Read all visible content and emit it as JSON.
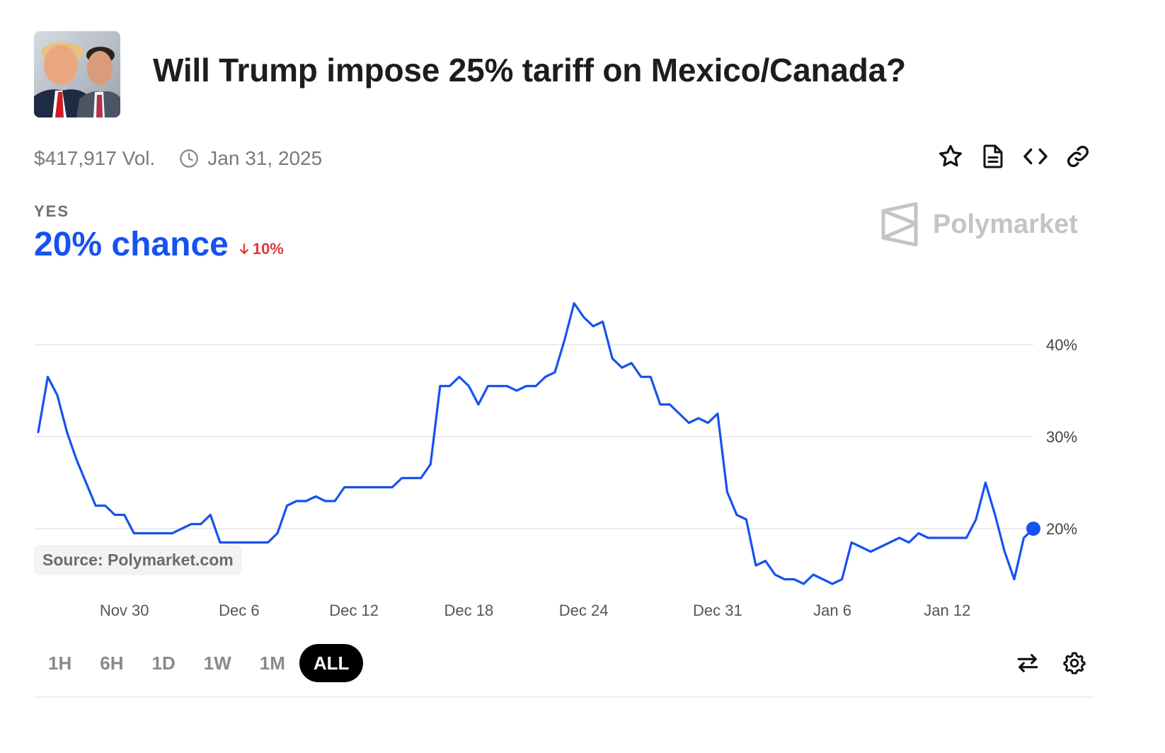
{
  "market": {
    "title": "Will Trump impose 25% tariff on Mexico/Canada?",
    "volume": "$417,917 Vol.",
    "end_date": "Jan 31, 2025",
    "outcome_label": "YES",
    "chance": "20% chance",
    "change": "10%",
    "change_direction": "down",
    "thumbnail_alt": "photo-of-two-men",
    "brand": "Polymarket",
    "source": "Source: Polymarket.com"
  },
  "actions": [
    {
      "icon": "star-icon"
    },
    {
      "icon": "document-icon"
    },
    {
      "icon": "code-icon"
    },
    {
      "icon": "link-icon"
    }
  ],
  "time_ranges": [
    "1H",
    "6H",
    "1D",
    "1W",
    "1M",
    "ALL"
  ],
  "active_range": "ALL",
  "controls": [
    {
      "icon": "swap-arrows-icon"
    },
    {
      "icon": "settings-gear-icon"
    }
  ],
  "colors": {
    "accent": "#1652f0",
    "negative": "#e23939",
    "title": "#1d1d1f",
    "muted": "#7a7a7a",
    "grid": "#ececec"
  },
  "chart_data": {
    "type": "line",
    "title": "",
    "xlabel": "",
    "ylabel": "",
    "x_ticks": [
      {
        "label": "Nov 30",
        "x": "2024-11-30"
      },
      {
        "label": "Dec 6",
        "x": "2024-12-06"
      },
      {
        "label": "Dec 12",
        "x": "2024-12-12"
      },
      {
        "label": "Dec 18",
        "x": "2024-12-18"
      },
      {
        "label": "Dec 24",
        "x": "2024-12-24"
      },
      {
        "label": "Dec 31",
        "x": "2024-12-31"
      },
      {
        "label": "Jan 6",
        "x": "2025-01-06"
      },
      {
        "label": "Jan 12",
        "x": "2025-01-12"
      }
    ],
    "y_ticks": [
      {
        "label": "20%",
        "value": 20
      },
      {
        "label": "30%",
        "value": 30
      },
      {
        "label": "40%",
        "value": 40
      }
    ],
    "ylim": [
      12,
      47
    ],
    "grid": true,
    "series": [
      {
        "points": [
          [
            "2024-11-25 12:00",
            30.5
          ],
          [
            "2024-11-26 00:00",
            36.5
          ],
          [
            "2024-11-26 12:00",
            34.5
          ],
          [
            "2024-11-27 00:00",
            30.5
          ],
          [
            "2024-11-27 12:00",
            27.5
          ],
          [
            "2024-11-28 00:00",
            25.0
          ],
          [
            "2024-11-28 12:00",
            22.5
          ],
          [
            "2024-11-29 00:00",
            22.5
          ],
          [
            "2024-11-29 12:00",
            21.5
          ],
          [
            "2024-11-30 00:00",
            21.5
          ],
          [
            "2024-11-30 12:00",
            19.5
          ],
          [
            "2024-12-01 00:00",
            19.5
          ],
          [
            "2024-12-01 12:00",
            19.5
          ],
          [
            "2024-12-02 00:00",
            19.5
          ],
          [
            "2024-12-02 12:00",
            19.5
          ],
          [
            "2024-12-03 00:00",
            20.0
          ],
          [
            "2024-12-03 12:00",
            20.5
          ],
          [
            "2024-12-04 00:00",
            20.5
          ],
          [
            "2024-12-04 12:00",
            21.5
          ],
          [
            "2024-12-05 00:00",
            18.5
          ],
          [
            "2024-12-05 12:00",
            18.5
          ],
          [
            "2024-12-06 00:00",
            18.5
          ],
          [
            "2024-12-06 12:00",
            18.5
          ],
          [
            "2024-12-07 00:00",
            18.5
          ],
          [
            "2024-12-07 12:00",
            18.5
          ],
          [
            "2024-12-08 00:00",
            19.5
          ],
          [
            "2024-12-08 12:00",
            22.5
          ],
          [
            "2024-12-09 00:00",
            23.0
          ],
          [
            "2024-12-09 12:00",
            23.0
          ],
          [
            "2024-12-10 00:00",
            23.5
          ],
          [
            "2024-12-10 12:00",
            23.0
          ],
          [
            "2024-12-11 00:00",
            23.0
          ],
          [
            "2024-12-11 12:00",
            24.5
          ],
          [
            "2024-12-12 00:00",
            24.5
          ],
          [
            "2024-12-12 12:00",
            24.5
          ],
          [
            "2024-12-13 00:00",
            24.5
          ],
          [
            "2024-12-13 12:00",
            24.5
          ],
          [
            "2024-12-14 00:00",
            24.5
          ],
          [
            "2024-12-14 12:00",
            25.5
          ],
          [
            "2024-12-15 00:00",
            25.5
          ],
          [
            "2024-12-15 12:00",
            25.5
          ],
          [
            "2024-12-16 00:00",
            27.0
          ],
          [
            "2024-12-16 12:00",
            35.5
          ],
          [
            "2024-12-17 00:00",
            35.5
          ],
          [
            "2024-12-17 12:00",
            36.5
          ],
          [
            "2024-12-18 00:00",
            35.5
          ],
          [
            "2024-12-18 12:00",
            33.5
          ],
          [
            "2024-12-19 00:00",
            35.5
          ],
          [
            "2024-12-19 12:00",
            35.5
          ],
          [
            "2024-12-20 00:00",
            35.5
          ],
          [
            "2024-12-20 12:00",
            35.0
          ],
          [
            "2024-12-21 00:00",
            35.5
          ],
          [
            "2024-12-21 12:00",
            35.5
          ],
          [
            "2024-12-22 00:00",
            36.5
          ],
          [
            "2024-12-22 12:00",
            37.0
          ],
          [
            "2024-12-23 00:00",
            40.5
          ],
          [
            "2024-12-23 12:00",
            44.5
          ],
          [
            "2024-12-24 00:00",
            43.0
          ],
          [
            "2024-12-24 12:00",
            42.0
          ],
          [
            "2024-12-25 00:00",
            42.5
          ],
          [
            "2024-12-25 12:00",
            38.5
          ],
          [
            "2024-12-26 00:00",
            37.5
          ],
          [
            "2024-12-26 12:00",
            38.0
          ],
          [
            "2024-12-27 00:00",
            36.5
          ],
          [
            "2024-12-27 12:00",
            36.5
          ],
          [
            "2024-12-28 00:00",
            33.5
          ],
          [
            "2024-12-28 12:00",
            33.5
          ],
          [
            "2024-12-29 00:00",
            32.5
          ],
          [
            "2024-12-29 12:00",
            31.5
          ],
          [
            "2024-12-30 00:00",
            32.0
          ],
          [
            "2024-12-30 12:00",
            31.5
          ],
          [
            "2024-12-31 00:00",
            32.5
          ],
          [
            "2024-12-31 12:00",
            24.0
          ],
          [
            "2025-01-01 00:00",
            21.5
          ],
          [
            "2025-01-01 12:00",
            21.0
          ],
          [
            "2025-01-02 00:00",
            16.0
          ],
          [
            "2025-01-02 12:00",
            16.5
          ],
          [
            "2025-01-03 00:00",
            15.0
          ],
          [
            "2025-01-03 12:00",
            14.5
          ],
          [
            "2025-01-04 00:00",
            14.5
          ],
          [
            "2025-01-04 12:00",
            14.0
          ],
          [
            "2025-01-05 00:00",
            15.0
          ],
          [
            "2025-01-05 12:00",
            14.5
          ],
          [
            "2025-01-06 00:00",
            14.0
          ],
          [
            "2025-01-06 12:00",
            14.5
          ],
          [
            "2025-01-07 00:00",
            18.5
          ],
          [
            "2025-01-07 12:00",
            18.0
          ],
          [
            "2025-01-08 00:00",
            17.5
          ],
          [
            "2025-01-08 12:00",
            18.0
          ],
          [
            "2025-01-09 00:00",
            18.5
          ],
          [
            "2025-01-09 12:00",
            19.0
          ],
          [
            "2025-01-10 00:00",
            18.5
          ],
          [
            "2025-01-10 12:00",
            19.5
          ],
          [
            "2025-01-11 00:00",
            19.0
          ],
          [
            "2025-01-11 12:00",
            19.0
          ],
          [
            "2025-01-12 00:00",
            19.0
          ],
          [
            "2025-01-12 12:00",
            19.0
          ],
          [
            "2025-01-13 00:00",
            19.0
          ],
          [
            "2025-01-13 12:00",
            21.0
          ],
          [
            "2025-01-14 00:00",
            25.0
          ],
          [
            "2025-01-14 12:00",
            21.5
          ],
          [
            "2025-01-15 00:00",
            17.5
          ],
          [
            "2025-01-15 12:00",
            14.5
          ],
          [
            "2025-01-16 00:00",
            19.0
          ],
          [
            "2025-01-16 12:00",
            20.0
          ]
        ]
      }
    ]
  }
}
